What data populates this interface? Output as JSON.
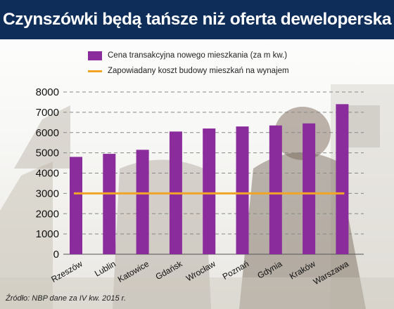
{
  "header": {
    "title": "Czynszówki będą tańsze niż oferta deweloperska"
  },
  "legend": {
    "bar_label": "Cena transakcyjna nowego mieszkania (za m kw.)",
    "line_label": "Zapowiadany koszt budowy mieszkań na wynajem"
  },
  "source": "Źródło: NBP dane za IV kw. 2015 r.",
  "colors": {
    "title_bg": "#0f2d59",
    "bar": "#8a2c9c",
    "line": "#f0a526",
    "grid": "#888888"
  },
  "chart_data": {
    "type": "bar",
    "categories": [
      "Rzeszów",
      "Lublin",
      "Katowice",
      "Gdańsk",
      "Wrocław",
      "Poznań",
      "Gdynia",
      "Kraków",
      "Warszawa"
    ],
    "series": [
      {
        "name": "Cena transakcyjna nowego mieszkania (za m kw.)",
        "type": "bar",
        "values": [
          4800,
          4950,
          5150,
          6050,
          6200,
          6300,
          6350,
          6450,
          7400
        ]
      },
      {
        "name": "Zapowiadany koszt budowy mieszkań na wynajem",
        "type": "line",
        "values": [
          3000,
          3000,
          3000,
          3000,
          3000,
          3000,
          3000,
          3000,
          3000
        ]
      }
    ],
    "yticks": [
      0,
      1000,
      2000,
      3000,
      4000,
      5000,
      6000,
      7000,
      8000
    ],
    "ylim": [
      0,
      8000
    ],
    "grid": true,
    "legend_position": "top"
  }
}
